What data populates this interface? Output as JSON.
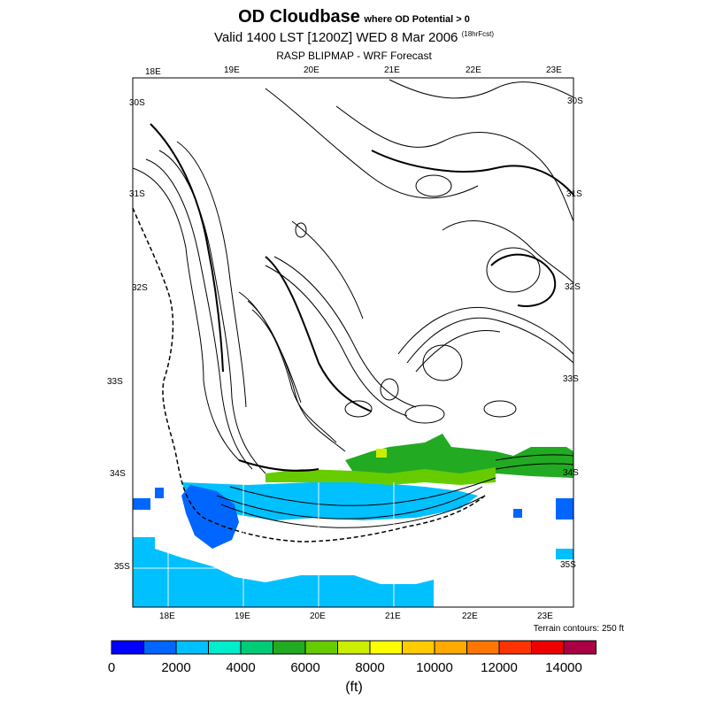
{
  "header": {
    "title_main": "OD Cloudbase",
    "title_sub": "where OD Potential > 0",
    "valid_line": "Valid 1400 LST [1200Z] WED 8 Mar 2006",
    "forecast_hour": "(18hrFcst)",
    "source_line": "RASP BLIPMAP - WRF Forecast"
  },
  "map": {
    "lon_labels_top": [
      "18E",
      "19E",
      "20E",
      "21E",
      "22E",
      "23E"
    ],
    "lon_labels_bottom": [
      "18E",
      "19E",
      "20E",
      "21E",
      "22E",
      "23E"
    ],
    "lat_labels_left": [
      "30S",
      "31S",
      "32S",
      "33S",
      "34S",
      "35S"
    ],
    "lat_labels_right": [
      "30S",
      "31S",
      "32S",
      "33S",
      "34S",
      "35S"
    ],
    "terrain_note": "Terrain contours: 250 ft"
  },
  "colorbar": {
    "colors": [
      "#0000ff",
      "#0066ff",
      "#00c0ff",
      "#00eecc",
      "#00cc77",
      "#22aa22",
      "#66cc00",
      "#ccee00",
      "#ffff00",
      "#ffcc00",
      "#ffaa00",
      "#ff7700",
      "#ff3300",
      "#ee0000",
      "#aa0044"
    ],
    "tick_labels": [
      "0",
      "2000",
      "4000",
      "6000",
      "8000",
      "10000",
      "12000",
      "14000"
    ],
    "units": "(ft)"
  }
}
